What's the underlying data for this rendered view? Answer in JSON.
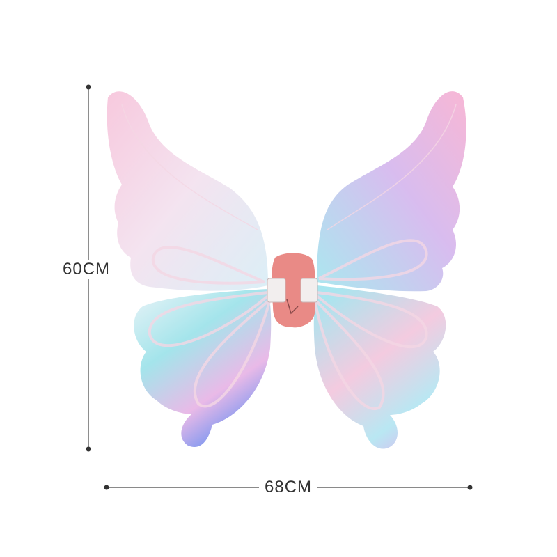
{
  "product": {
    "subject": "butterfly-wings",
    "height_label": "60CM",
    "width_label": "68CM"
  },
  "colors": {
    "dimension_line": "#444444",
    "pink": "#f6b8d8",
    "cyan": "#8fe0ea",
    "lavender": "#c9b6f0",
    "center_piece": "#e98a86"
  }
}
